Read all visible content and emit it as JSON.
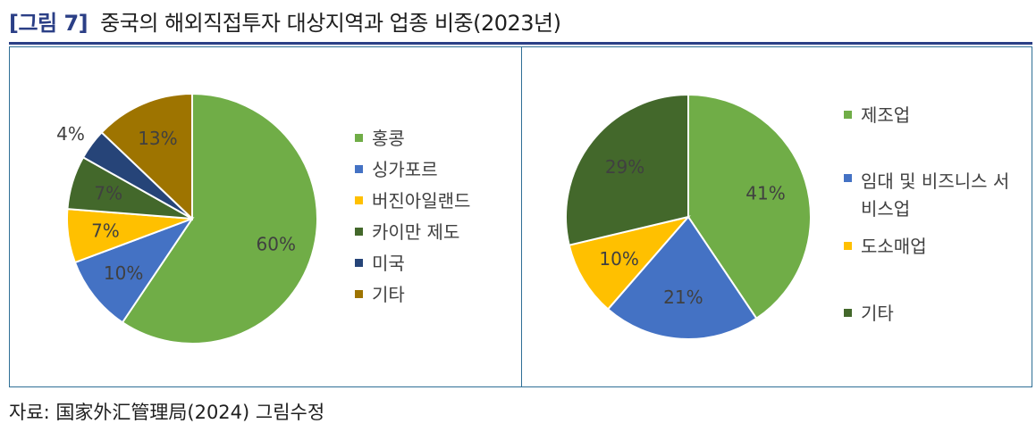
{
  "figure": {
    "label": "[그림 7]",
    "title": "중국의 해외직접투자 대상지역과 업종 비중(2023년)",
    "source": "자료: 国家外汇管理局(2024) 그림수정"
  },
  "colors": {
    "header": "#2b3f86",
    "frame": "#2f6f96"
  },
  "chart_data": [
    {
      "type": "pie",
      "title": "",
      "categories": [
        "홍콩",
        "싱가포르",
        "버진아일랜드",
        "카이만 제도",
        "미국",
        "기타"
      ],
      "values": [
        60,
        10,
        7,
        7,
        4,
        13
      ],
      "labels": [
        "60%",
        "10%",
        "7%",
        "7%",
        "4%",
        "13%"
      ],
      "colors": [
        "#70ad47",
        "#4472c4",
        "#ffc000",
        "#43682b",
        "#264478",
        "#9e7400"
      ],
      "legend_position": "right"
    },
    {
      "type": "pie",
      "title": "",
      "categories": [
        "제조업",
        "임대 및 비즈니스 서비스업",
        "도소매업",
        "기타"
      ],
      "values": [
        41,
        21,
        10,
        29
      ],
      "labels": [
        "41%",
        "21%",
        "10%",
        "29%"
      ],
      "colors": [
        "#70ad47",
        "#4472c4",
        "#ffc000",
        "#43682b"
      ],
      "legend_position": "right"
    }
  ]
}
